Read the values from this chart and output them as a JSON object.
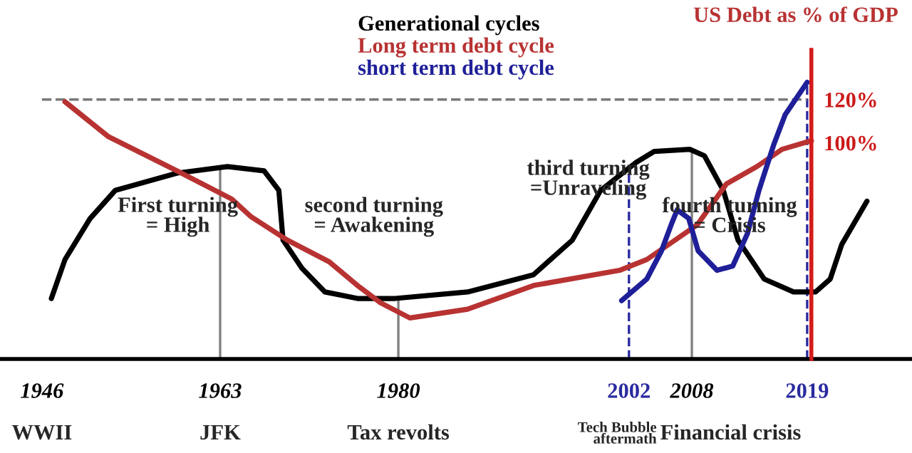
{
  "chart_data": {
    "type": "line",
    "ylabel": "US Debt as % of GDP",
    "series": [
      {
        "name": "Generational cycles",
        "color": "#000000",
        "x": [
          1946.9,
          1948.2,
          1950.6,
          1953.0,
          1958.9,
          1963.7,
          1967.2,
          1968.6,
          1969.0,
          1970.8,
          1973.0,
          1976.1,
          1979.7,
          1986.6,
          1992.9,
          1996.6,
          1999.3,
          2002.7,
          2004.4,
          2007.8,
          2009.2,
          2011.0,
          2012.4,
          2014.9,
          2017.7,
          2019.8,
          2021.2,
          2022.3,
          2024.7
        ],
        "values": [
          28,
          46,
          65,
          78,
          86,
          89,
          87,
          78,
          55,
          42,
          31,
          28,
          28,
          31,
          39,
          55,
          78,
          91,
          96,
          97,
          94,
          78,
          55,
          37,
          31,
          31,
          37,
          53,
          73
        ]
      },
      {
        "name": "Long term debt cycle",
        "color": "#b83232",
        "x": [
          1948.2,
          1952.3,
          1958.9,
          1964.1,
          1965.9,
          1969.4,
          1973.4,
          1976.1,
          1978.3,
          1981.1,
          1986.6,
          1992.9,
          2001.1,
          2003.7,
          2006.1,
          2008.5,
          2011.3,
          2014.2,
          2016.6,
          2019.4
        ],
        "values": [
          119,
          103,
          87,
          74,
          66,
          55,
          45,
          34,
          26,
          19,
          23,
          34,
          41,
          46,
          54,
          62,
          81,
          89,
          97,
          101
        ]
      },
      {
        "name": "short term debt cycle",
        "color": "#1f1f99",
        "x": [
          2001.3,
          2003.7,
          2005.1,
          2006.1,
          2006.6,
          2007.7,
          2008.6,
          2010.4,
          2011.9,
          2013.3,
          2014.4,
          2015.8,
          2016.9,
          2019.0
        ],
        "values": [
          27,
          37,
          50,
          63,
          69,
          65,
          50,
          41,
          43,
          58,
          78,
          99,
          113,
          128
        ]
      }
    ],
    "xlim": [
      1942,
      2029
    ],
    "xticks": [
      1946,
      1963,
      1980,
      2002,
      2008,
      2019
    ],
    "ylim": [
      0,
      143
    ],
    "yticks": [
      {
        "value": 100,
        "label": "100%"
      },
      {
        "value": 120,
        "label": "120%"
      }
    ],
    "ref_lines": [
      {
        "axis": "y",
        "value": 120,
        "color": "#7a7a7a",
        "line_style": "dashed"
      },
      {
        "axis": "x",
        "value": 1963,
        "color": "#808080",
        "line_style": "solid"
      },
      {
        "axis": "x",
        "value": 1980,
        "color": "#808080",
        "line_style": "solid"
      },
      {
        "axis": "x",
        "value": 2002,
        "color": "#2a2aa0",
        "line_style": "dashed"
      },
      {
        "axis": "x",
        "value": 2008,
        "color": "#808080",
        "line_style": "solid"
      },
      {
        "axis": "x",
        "value": 2019,
        "color": "#2a2aa0",
        "line_style": "dashed"
      }
    ],
    "annotations": [
      "First turning\n= High",
      "second turning\n= Awakening",
      "third turning\n=Unraveling",
      "fourth turning\n= Crisis",
      "WWII",
      "JFK",
      "Tax revolts",
      "Tech Bubble\naftermath",
      "Financial crisis"
    ],
    "legend": "top",
    "grid": false,
    "line_style": "solid",
    "marker": "none"
  }
}
